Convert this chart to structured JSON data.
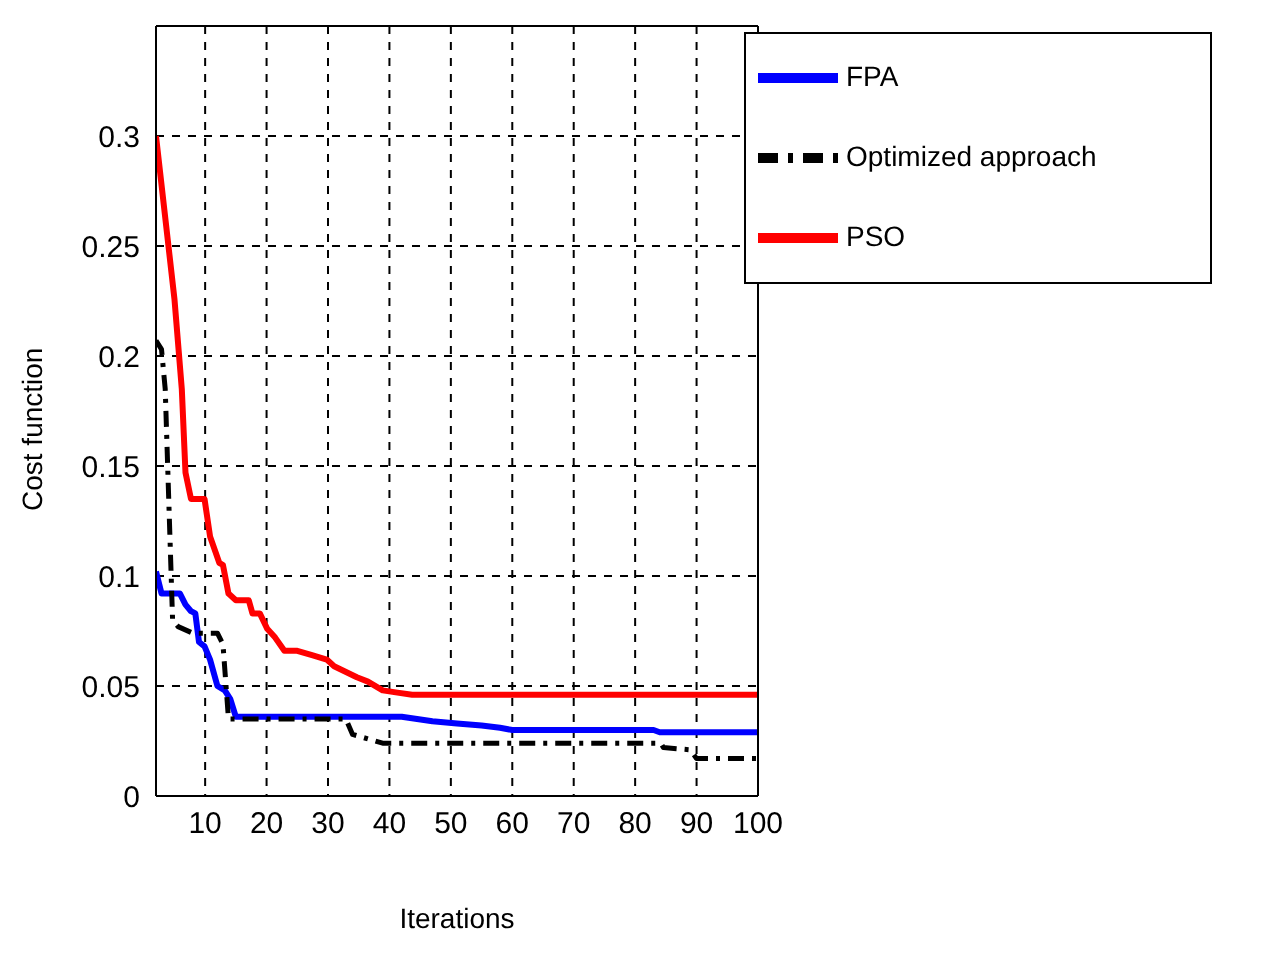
{
  "chart_data": {
    "type": "line",
    "xlabel": "Iterations",
    "ylabel": "Cost function",
    "xlim": [
      2,
      100
    ],
    "ylim": [
      0,
      0.35
    ],
    "xticks": [
      10,
      20,
      30,
      40,
      50,
      60,
      70,
      80,
      90,
      100
    ],
    "yticks": [
      0,
      0.05,
      0.1,
      0.15,
      0.2,
      0.25,
      0.3
    ],
    "grid": true,
    "legend": "top right",
    "marker": "none",
    "series": [
      {
        "name": "PSO",
        "color": "#ff0000",
        "line_style": "solid",
        "x": [
          2,
          5,
          6.2,
          6.8,
          7.7,
          9.9,
          10.8,
          12.3,
          12.9,
          13.8,
          15,
          17.1,
          17.7,
          18.9,
          20.1,
          21.4,
          22.9,
          25,
          27.4,
          29.8,
          31,
          34.7,
          36.5,
          38.9,
          41.3,
          43.7,
          45,
          100
        ],
        "values": [
          0.3,
          0.226,
          0.185,
          0.147,
          0.135,
          0.135,
          0.118,
          0.106,
          0.105,
          0.092,
          0.089,
          0.089,
          0.083,
          0.083,
          0.076,
          0.072,
          0.066,
          0.066,
          0.064,
          0.062,
          0.059,
          0.054,
          0.052,
          0.048,
          0.047,
          0.046,
          0.046,
          0.046
        ]
      },
      {
        "name": "FPA",
        "color": "#0000ff",
        "line_style": "solid",
        "x": [
          2,
          2.9,
          5.9,
          6.8,
          7.7,
          8.4,
          9,
          9.9,
          10.8,
          12,
          13.2,
          14.1,
          15,
          42,
          47,
          51,
          55,
          58,
          60,
          83,
          84,
          100
        ],
        "values": [
          0.102,
          0.092,
          0.092,
          0.087,
          0.084,
          0.083,
          0.07,
          0.068,
          0.062,
          0.05,
          0.048,
          0.044,
          0.036,
          0.036,
          0.034,
          0.033,
          0.032,
          0.031,
          0.03,
          0.03,
          0.029,
          0.029
        ]
      },
      {
        "name": "Optimized approach",
        "color": "#000000",
        "line_style": "dashdot",
        "x": [
          2,
          2.9,
          3.5,
          4.7,
          5.6,
          8,
          12,
          12.9,
          13.8,
          32.9,
          34,
          38.9,
          84.2,
          84.6,
          89,
          90,
          100
        ],
        "values": [
          0.207,
          0.203,
          0.185,
          0.08,
          0.077,
          0.074,
          0.074,
          0.069,
          0.035,
          0.035,
          0.028,
          0.024,
          0.024,
          0.022,
          0.021,
          0.017,
          0.017
        ]
      }
    ]
  }
}
